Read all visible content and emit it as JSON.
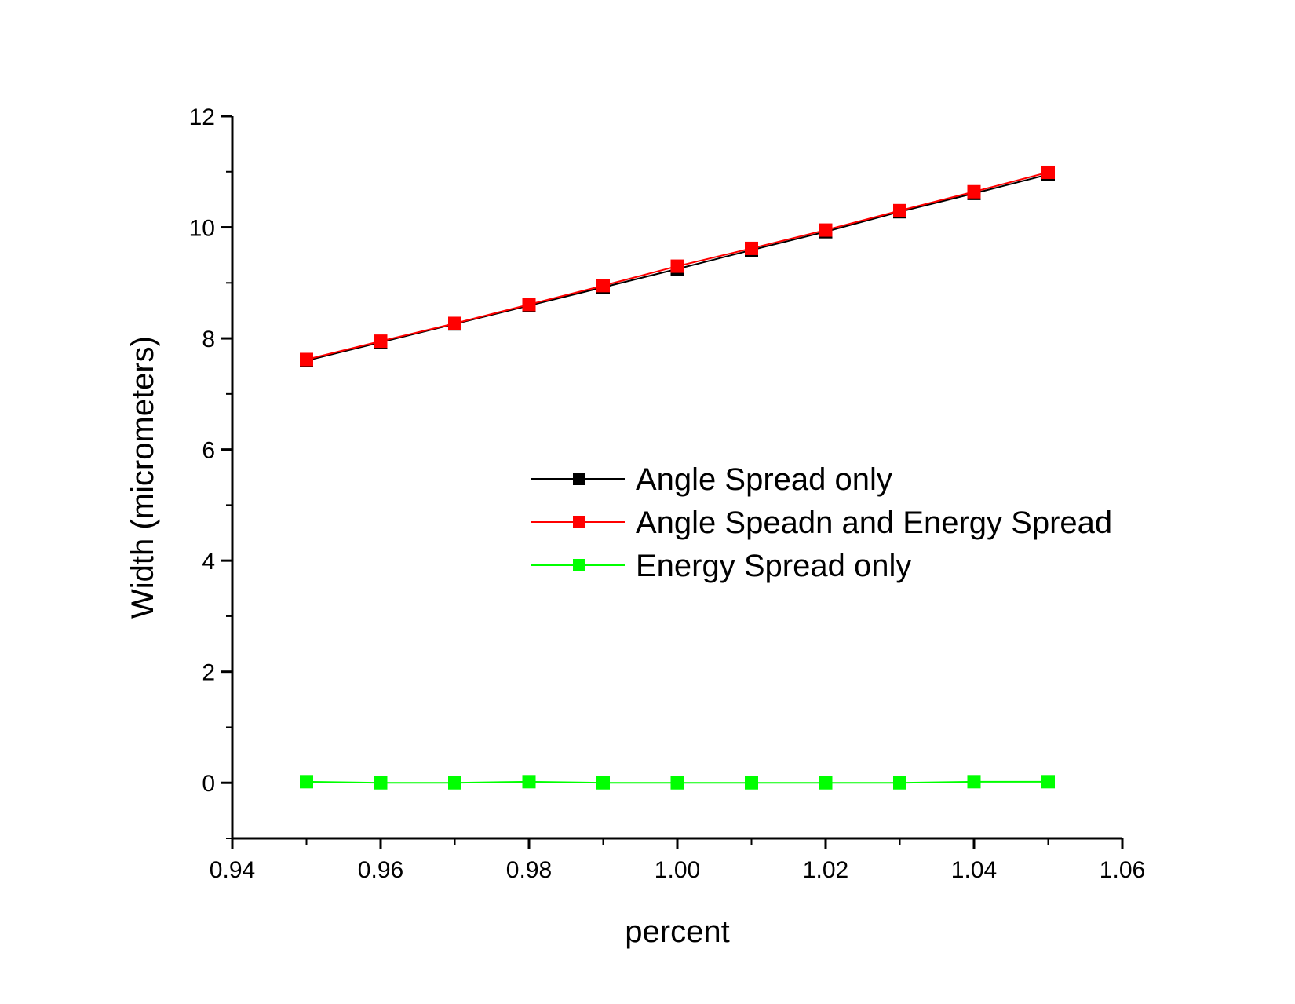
{
  "chart_data": {
    "type": "line",
    "title": "",
    "xlabel": "percent",
    "ylabel": "Width (micrometers)",
    "xlim": [
      0.94,
      1.06
    ],
    "ylim": [
      -1,
      12
    ],
    "x_ticks": [
      "0.94",
      "0.96",
      "0.98",
      "1.00",
      "1.02",
      "1.04",
      "1.06"
    ],
    "y_ticks": [
      "0",
      "2",
      "4",
      "6",
      "8",
      "10",
      "12"
    ],
    "x_tick_values": [
      0.94,
      0.96,
      0.98,
      1.0,
      1.02,
      1.04,
      1.06
    ],
    "y_tick_values": [
      0,
      2,
      4,
      6,
      8,
      10,
      12
    ],
    "x_minor_ticks": [
      0.95,
      0.97,
      0.99,
      1.01,
      1.03,
      1.05
    ],
    "y_minor_ticks": [
      -1,
      1,
      3,
      5,
      7,
      9,
      11
    ],
    "grid": false,
    "legend_position": "center-right",
    "x": [
      0.95,
      0.96,
      0.97,
      0.98,
      0.99,
      1.0,
      1.01,
      1.02,
      1.03,
      1.04,
      1.05
    ],
    "series": [
      {
        "name": "Angle Spread only",
        "color": "#000000",
        "marker": "square",
        "values": [
          7.6,
          7.93,
          8.26,
          8.59,
          8.92,
          9.25,
          9.59,
          9.92,
          10.28,
          10.61,
          10.95
        ]
      },
      {
        "name": "Angle Speadn and Energy Spread",
        "color": "#ff0000",
        "marker": "square",
        "values": [
          7.62,
          7.95,
          8.27,
          8.61,
          8.95,
          9.3,
          9.62,
          9.95,
          10.3,
          10.64,
          10.99
        ]
      },
      {
        "name": "Energy Spread only",
        "color": "#00ff00",
        "marker": "square",
        "values": [
          0.02,
          0.0,
          0.0,
          0.02,
          0.0,
          0.0,
          0.0,
          0.0,
          0.0,
          0.02,
          0.02
        ]
      }
    ]
  }
}
